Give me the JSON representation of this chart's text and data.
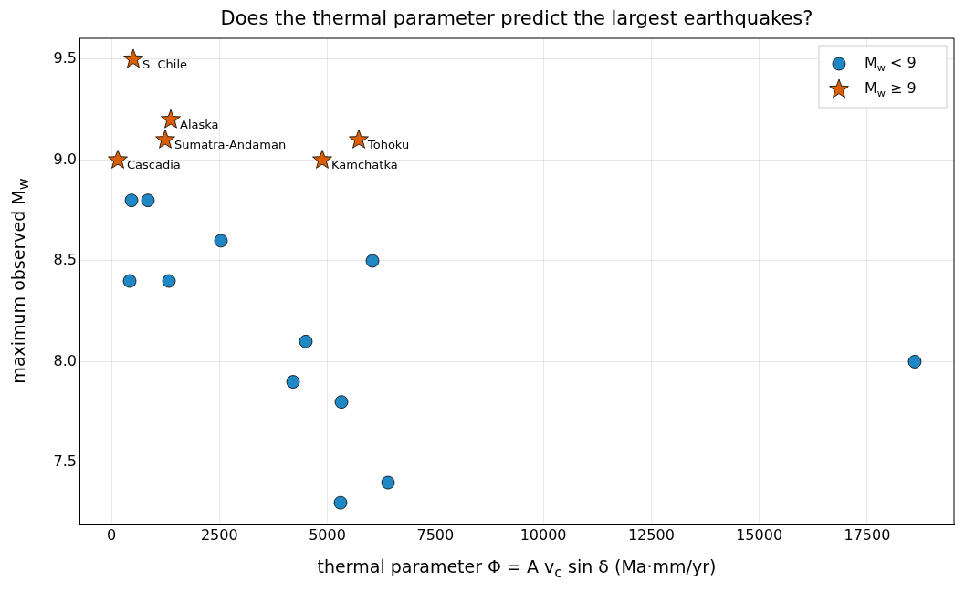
{
  "chart_data": {
    "type": "scatter",
    "title": "Does the thermal parameter predict the largest earthquakes?",
    "xlabel": "thermal parameter  Φ = A v$_{c}$ sin δ  (Ma·mm/yr)",
    "ylabel": "maximum observed M$_{w}$",
    "series": [
      {
        "name": "M$_{w}$ < 9",
        "color": "#1f88c4",
        "marker": "circle",
        "x": [
          465,
          845,
          423,
          1332,
          2536,
          6045,
          4502,
          4206,
          5327,
          6405,
          5305,
          18600
        ],
        "values": [
          8.8,
          8.8,
          8.4,
          8.4,
          8.6,
          8.5,
          8.1,
          7.9,
          7.8,
          7.4,
          7.3,
          8.0
        ]
      },
      {
        "name": "M$_{w}$ ≥ 9",
        "color": "#d95f02",
        "marker": "star",
        "x": [
          507,
          1374,
          1247,
          148,
          4883,
          5728
        ],
        "values": [
          9.5,
          9.2,
          9.1,
          9.0,
          9.0,
          9.1
        ]
      }
    ],
    "annotations": [
      {
        "text": "S. Chile",
        "x": 507,
        "y": 9.5
      },
      {
        "text": "Alaska",
        "x": 1374,
        "y": 9.2
      },
      {
        "text": "Sumatra-Andaman",
        "x": 1247,
        "y": 9.1
      },
      {
        "text": "Cascadia",
        "x": 148,
        "y": 9.0
      },
      {
        "text": "Kamchatka",
        "x": 4883,
        "y": 9.0
      },
      {
        "text": "Tohoku",
        "x": 5728,
        "y": 9.1
      }
    ],
    "xlim": [
      -740,
      19510
    ],
    "xticks": [
      0,
      2500,
      5000,
      7500,
      10000,
      12500,
      15000,
      17500
    ],
    "ylim": [
      7.192,
      9.604
    ],
    "yticks": [
      7.5,
      {
        "value": 8,
        "label": "8.0"
      },
      8.5,
      {
        "value": 9,
        "label": "9.0"
      },
      9.5
    ],
    "grid": true,
    "legend": "top right"
  }
}
